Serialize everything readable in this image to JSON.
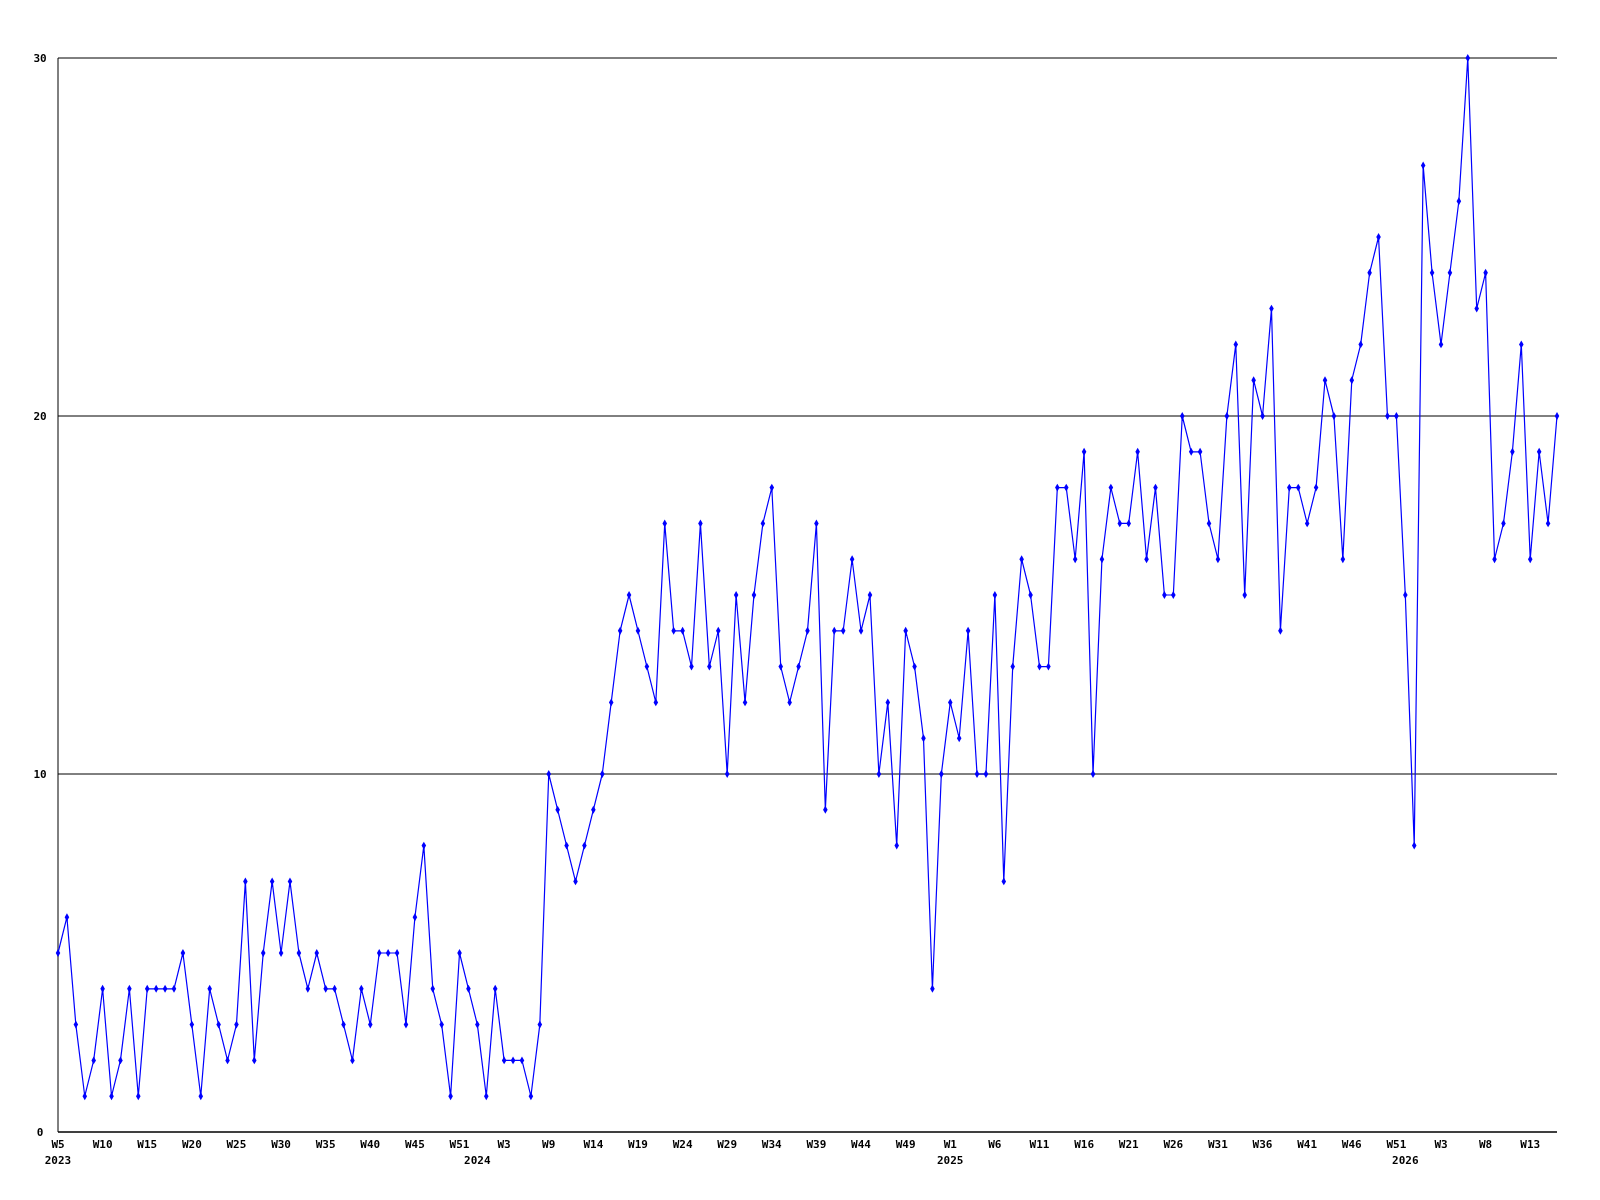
{
  "chart_data": {
    "type": "line",
    "categories": [
      "W5\n2023",
      null,
      null,
      null,
      null,
      "W10",
      null,
      null,
      null,
      null,
      "W15",
      null,
      null,
      null,
      null,
      "W20",
      null,
      null,
      null,
      null,
      "W25",
      null,
      null,
      null,
      null,
      "W30",
      null,
      null,
      null,
      null,
      "W35",
      null,
      null,
      null,
      null,
      "W40",
      null,
      null,
      null,
      null,
      "W45",
      null,
      null,
      null,
      null,
      "W51",
      null,
      "\n2024",
      null,
      null,
      "W3",
      null,
      null,
      null,
      null,
      "W9",
      null,
      null,
      null,
      null,
      "W14",
      null,
      null,
      null,
      null,
      "W19",
      null,
      null,
      null,
      null,
      "W24",
      null,
      null,
      null,
      null,
      "W29",
      null,
      null,
      null,
      null,
      "W34",
      null,
      null,
      null,
      null,
      "W39",
      null,
      null,
      null,
      null,
      "W44",
      null,
      null,
      null,
      null,
      "W49",
      null,
      null,
      null,
      null,
      "W1\n2025",
      null,
      null,
      null,
      null,
      "W6",
      null,
      null,
      null,
      null,
      "W11",
      null,
      null,
      null,
      null,
      "W16",
      null,
      null,
      null,
      null,
      "W21",
      null,
      null,
      null,
      null,
      "W26",
      null,
      null,
      null,
      null,
      "W31",
      null,
      null,
      null,
      null,
      "W36",
      null,
      null,
      null,
      null,
      "W41",
      null,
      null,
      null,
      null,
      "W46",
      null,
      null,
      null,
      null,
      "W51",
      "\n2026",
      null,
      null,
      null,
      "W3",
      null,
      null,
      null,
      null,
      "W8",
      null,
      null,
      null,
      null,
      "W13",
      null,
      null,
      null
    ],
    "series": [
      {
        "color": "#0000ff",
        "values": [
          5,
          6,
          3,
          1,
          2,
          4,
          1,
          2,
          4,
          1,
          4,
          4,
          4,
          4,
          5,
          3,
          1,
          4,
          3,
          2,
          3,
          7,
          2,
          5,
          7,
          5,
          7,
          5,
          4,
          5,
          4,
          4,
          3,
          2,
          4,
          3,
          5,
          5,
          5,
          3,
          6,
          8,
          4,
          3,
          1,
          5,
          4,
          3,
          1,
          4,
          2,
          2,
          2,
          1,
          3,
          10,
          9,
          8,
          7,
          8,
          9,
          10,
          12,
          14,
          15,
          14,
          13,
          12,
          17,
          14,
          14,
          13,
          17,
          13,
          14,
          10,
          15,
          12,
          15,
          17,
          18,
          13,
          12,
          13,
          14,
          17,
          9,
          14,
          14,
          16,
          14,
          15,
          10,
          12,
          8,
          14,
          13,
          11,
          4,
          10,
          12,
          11,
          14,
          10,
          10,
          15,
          7,
          13,
          16,
          15,
          13,
          13,
          18,
          18,
          16,
          19,
          10,
          16,
          18,
          17,
          17,
          19,
          16,
          18,
          15,
          15,
          20,
          19,
          19,
          17,
          16,
          20,
          22,
          15,
          21,
          20,
          23,
          14,
          18,
          18,
          17,
          18,
          21,
          20,
          16,
          21,
          22,
          24,
          25,
          20,
          20,
          15,
          8,
          27,
          24,
          22,
          24,
          26,
          30,
          23,
          24,
          16,
          17,
          19,
          22,
          16,
          19,
          17,
          20
        ]
      }
    ],
    "ylim": [
      0,
      30
    ],
    "yticks": [
      0,
      10,
      20,
      30
    ],
    "grid": "y",
    "marker": "diamond",
    "line_style": "solid"
  }
}
